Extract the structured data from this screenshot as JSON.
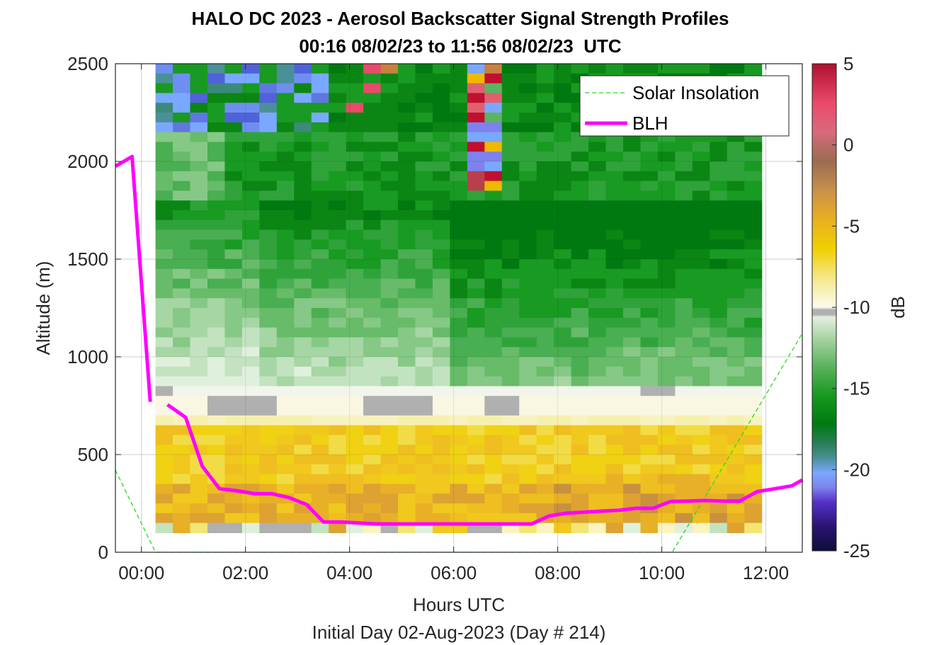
{
  "chart_data": {
    "type": "heatmap",
    "title": "HALO DC 2023 - Aerosol Backscatter Signal Strength Profiles",
    "subtitle": "00:16 08/02/23 to 11:56 08/02/23  UTC",
    "xlabel": "Hours UTC",
    "xlabel2": "Initial Day 02-Aug-2023 (Day # 214)",
    "ylabel": "Altitude (m)",
    "colorbar_label": "dB",
    "xlim": [
      -0.5,
      12.7
    ],
    "ylim": [
      0,
      2500
    ],
    "x_ticks": [
      0,
      2,
      4,
      6,
      8,
      10,
      12
    ],
    "x_tick_labels": [
      "00:00",
      "02:00",
      "04:00",
      "06:00",
      "08:00",
      "10:00",
      "12:00"
    ],
    "y_ticks": [
      0,
      500,
      1000,
      1500,
      2000,
      2500
    ],
    "y_tick_labels": [
      "0",
      "500",
      "1000",
      "1500",
      "2000",
      "2500"
    ],
    "clim": [
      -25,
      5
    ],
    "c_ticks": [
      -25,
      -20,
      -15,
      -10,
      -5,
      0,
      5
    ],
    "c_tick_labels": [
      "-25",
      "-20",
      "-15",
      "-10",
      "-5",
      "0",
      "5"
    ],
    "grid": true,
    "legend_placement": "top-right",
    "heatmap": {
      "x_start": 0.27,
      "x_end": 11.92,
      "y_start": 100,
      "y_end": 2500,
      "n_cols": 35,
      "n_rows": 48
    },
    "series": [
      {
        "name": "Solar Insolation",
        "style": "dashed",
        "color": "#22dd22",
        "x": [
          -0.5,
          0.27,
          10.2,
          12.7
        ],
        "y": [
          420,
          0,
          0,
          1120
        ]
      },
      {
        "name": "BLH",
        "style": "solid",
        "color": "#ff00ff",
        "x": [
          -0.5,
          -0.18,
          0.17
        ],
        "y": [
          1975,
          2025,
          770
        ]
      },
      {
        "name": "BLH",
        "style": "solid",
        "color": "#ff00ff",
        "x": [
          0.5,
          0.85,
          1.17,
          1.5,
          1.83,
          2.17,
          2.5,
          2.83,
          3.17,
          3.5,
          3.83,
          4.17,
          4.5,
          5.5,
          6.5,
          7.5,
          7.83,
          8.17,
          8.5,
          8.83,
          9.17,
          9.5,
          9.83,
          10.17,
          10.5,
          10.83,
          11.17,
          11.5,
          11.83,
          12.17,
          12.5,
          12.7
        ],
        "y": [
          755,
          690,
          440,
          325,
          315,
          300,
          300,
          280,
          245,
          155,
          155,
          150,
          145,
          145,
          145,
          145,
          185,
          200,
          205,
          210,
          215,
          225,
          225,
          260,
          262,
          265,
          262,
          262,
          310,
          325,
          340,
          370
        ]
      }
    ]
  }
}
